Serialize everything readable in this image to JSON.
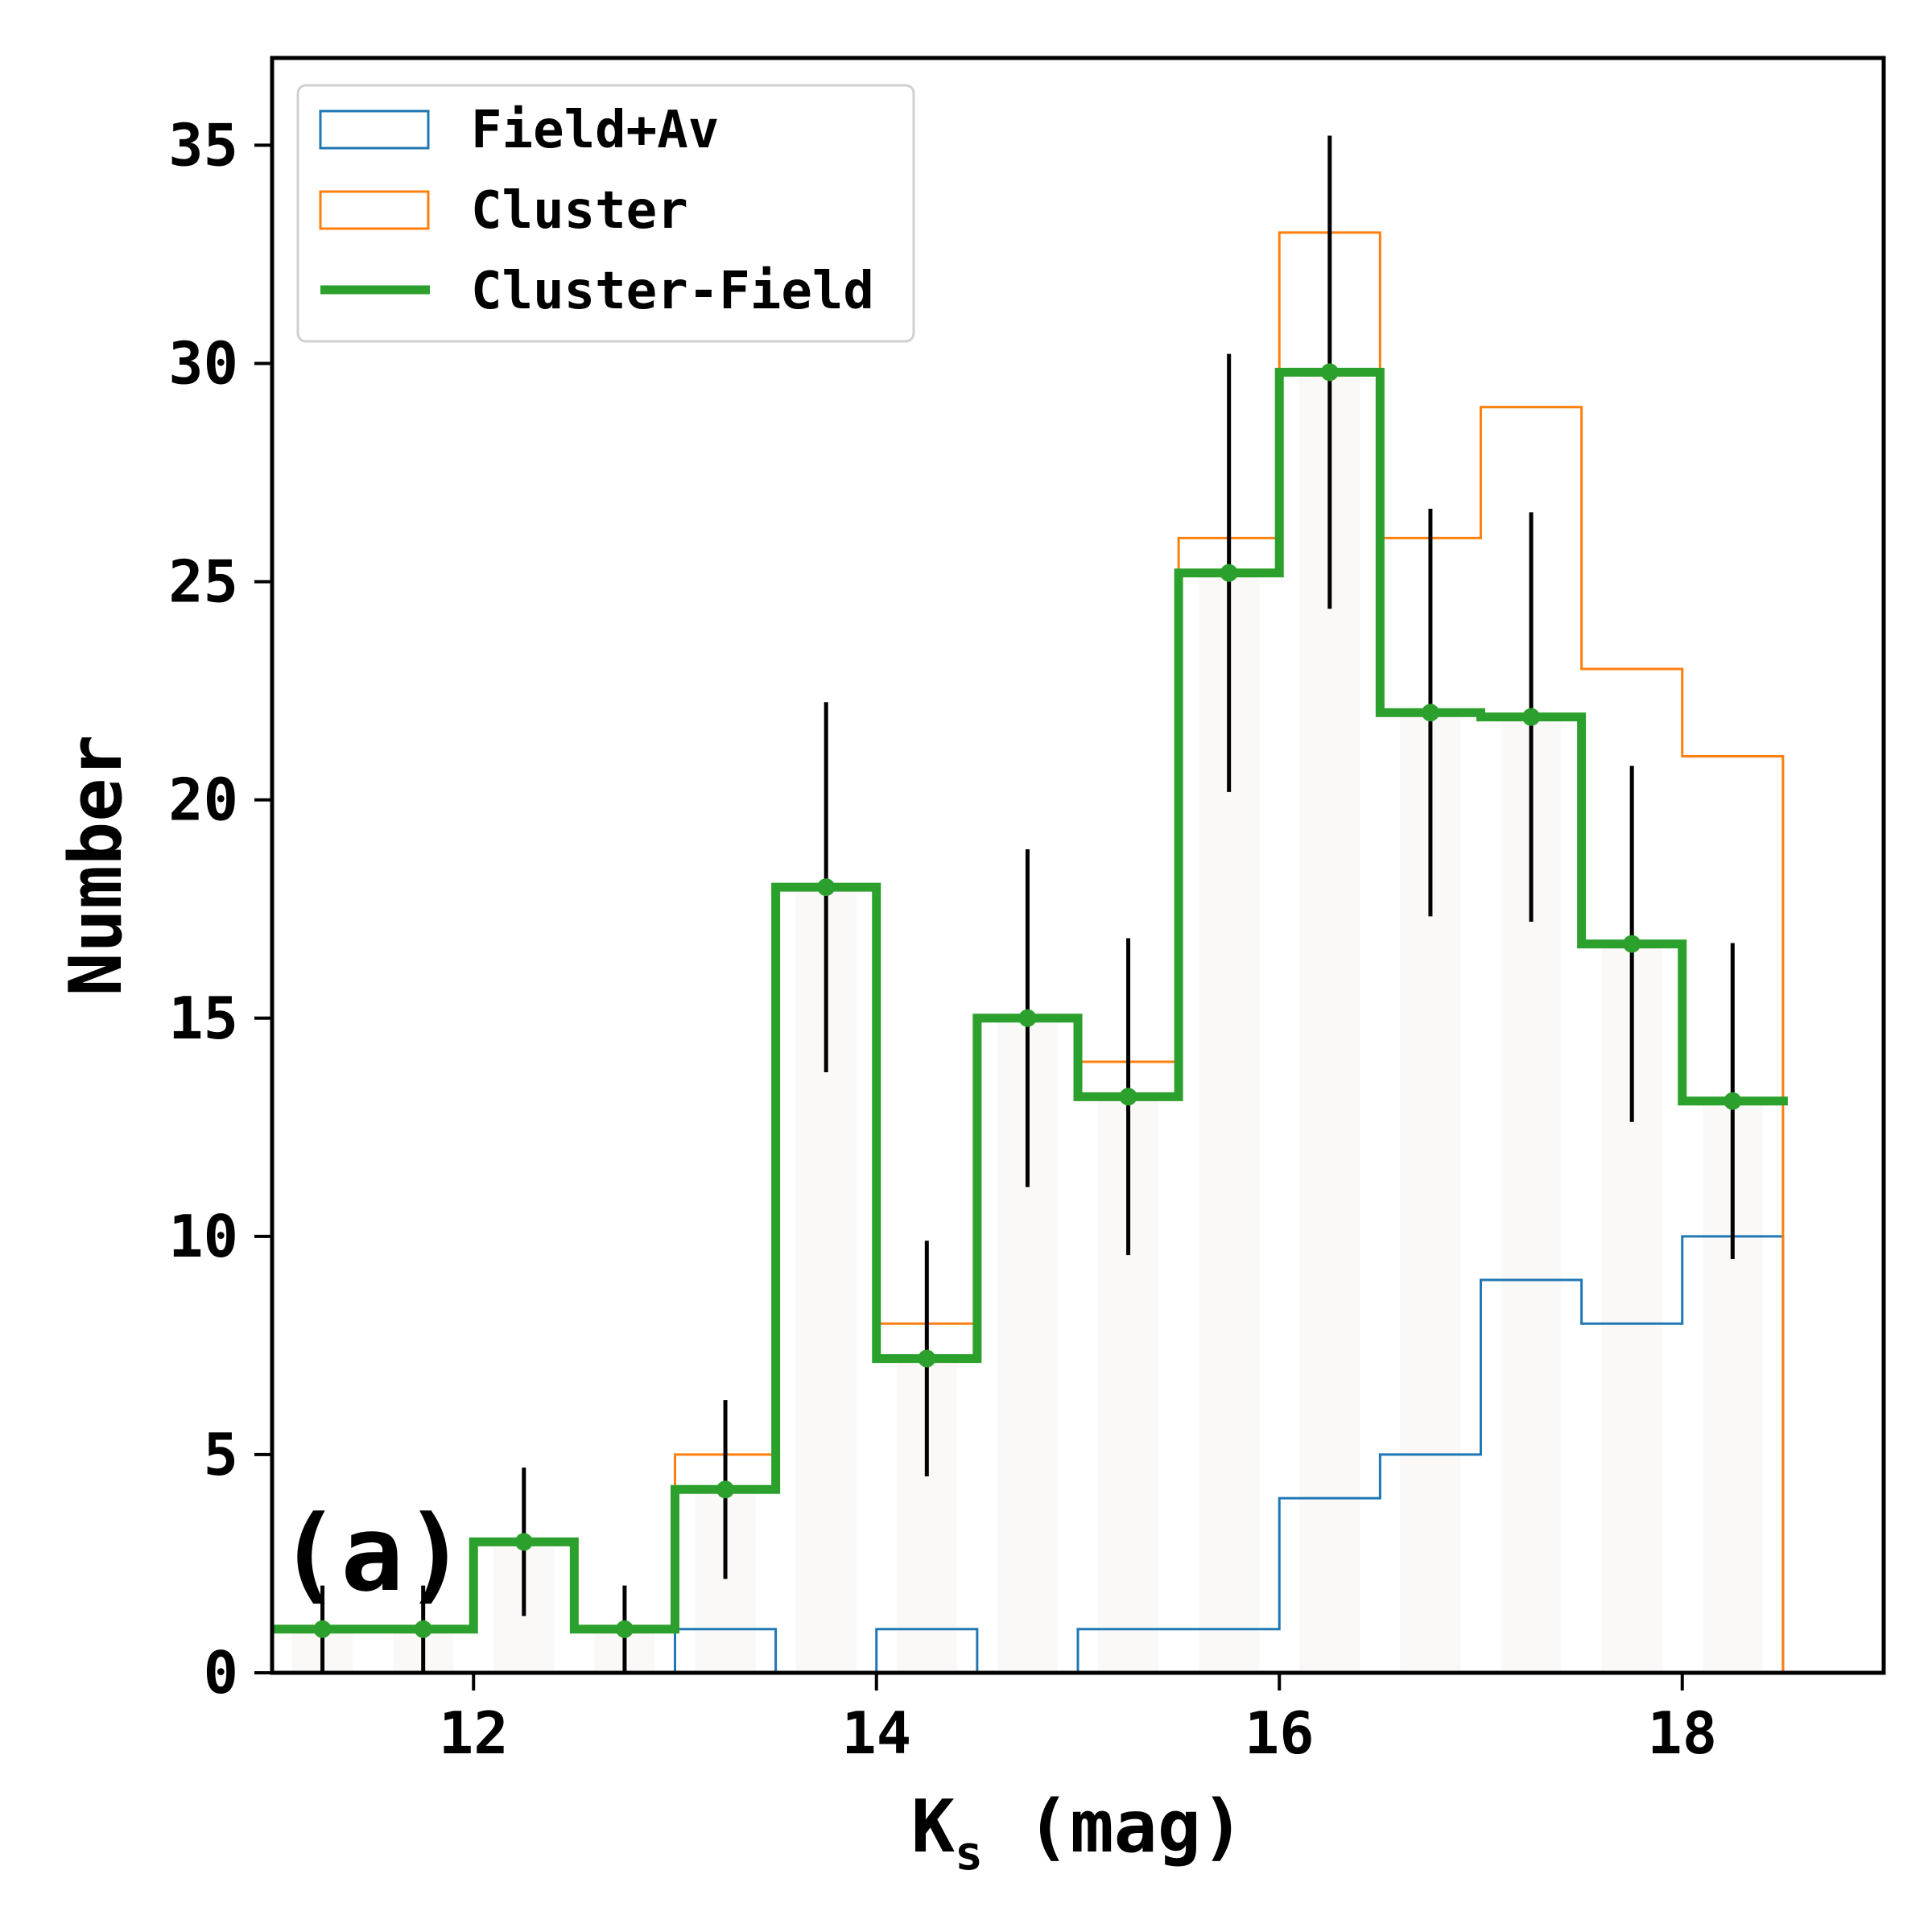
{
  "chart_data": {
    "type": "histogram",
    "xlabel_main": "K",
    "xlabel_sub": "s",
    "xlabel_rest": " (mag)",
    "ylabel": "Number",
    "panel_label": "(a)",
    "xlim": [
      11.0,
      19.0
    ],
    "ylim": [
      0,
      37
    ],
    "xticks": [
      12,
      14,
      16,
      18
    ],
    "yticks": [
      0,
      5,
      10,
      15,
      20,
      25,
      30,
      35
    ],
    "bin_edges": [
      11.0,
      11.5,
      12.0,
      12.5,
      13.0,
      13.5,
      14.0,
      14.5,
      15.0,
      15.5,
      16.0,
      16.5,
      17.0,
      17.5,
      18.0,
      18.5
    ],
    "series": [
      {
        "name": "Field+Av",
        "color": "#1f77b4",
        "values": [
          0,
          0,
          0,
          0,
          1,
          0,
          1,
          0,
          1,
          1,
          4,
          5,
          9,
          8,
          10
        ]
      },
      {
        "name": "Cluster",
        "color": "#ff7f0e",
        "values": [
          1,
          1,
          3,
          1,
          5,
          18,
          8,
          15,
          14,
          26,
          33,
          26,
          29,
          23,
          21
        ]
      },
      {
        "name": "Cluster-Field",
        "color": "#2ca02c",
        "values": [
          1,
          1,
          3,
          1,
          4.2,
          18,
          7.2,
          15,
          13.2,
          25.2,
          29.8,
          22,
          21.9,
          16.7,
          13.1
        ]
      }
    ],
    "errorbars": {
      "x": [
        11.25,
        11.75,
        12.25,
        12.75,
        13.25,
        13.75,
        14.25,
        14.75,
        15.25,
        15.75,
        16.25,
        16.75,
        17.25,
        17.75,
        18.25
      ],
      "y": [
        1,
        1,
        3,
        1,
        4.2,
        18,
        7.2,
        15,
        13.2,
        25.2,
        29.8,
        22,
        21.9,
        16.7,
        13.1
      ],
      "err": [
        1.0,
        1.0,
        1.7,
        1.0,
        2.05,
        4.24,
        2.7,
        3.87,
        3.63,
        5.02,
        5.42,
        4.67,
        4.69,
        4.08,
        3.62
      ]
    },
    "legend": {
      "location": "upper-left",
      "entries": [
        "Field+Av",
        "Cluster",
        "Cluster-Field"
      ]
    }
  }
}
